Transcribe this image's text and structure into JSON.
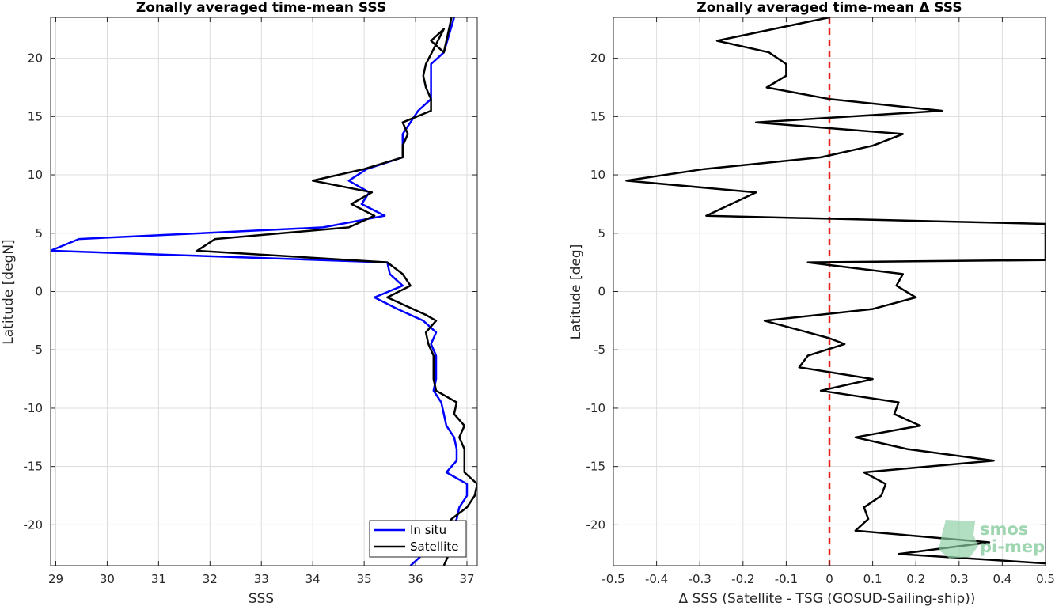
{
  "chart_data": [
    {
      "type": "line",
      "title": "Zonally averaged time-mean SSS",
      "xlabel": "SSS",
      "ylabel": "Latitude [degN]",
      "xlim": [
        28.9,
        37.2
      ],
      "ylim": [
        -23.5,
        23.5
      ],
      "xticks": [
        "29",
        "30",
        "31",
        "32",
        "33",
        "34",
        "35",
        "36",
        "37"
      ],
      "yticks": [
        "20",
        "15",
        "10",
        "5",
        "0",
        "-5",
        "-10",
        "-15",
        "-20"
      ],
      "grid": true,
      "legend": {
        "placement": "bottom-right",
        "entries": [
          "In situ",
          "Satellite"
        ]
      },
      "series": [
        {
          "name": "In situ",
          "color": "#0000ff",
          "points": [
            [
              36.75,
              23.5
            ],
            [
              36.55,
              20.5
            ],
            [
              36.3,
              19.5
            ],
            [
              36.3,
              18.5
            ],
            [
              36.3,
              17.5
            ],
            [
              36.3,
              16.5
            ],
            [
              36.05,
              15.5
            ],
            [
              35.9,
              14.5
            ],
            [
              35.75,
              13.5
            ],
            [
              35.75,
              12.5
            ],
            [
              35.75,
              11.5
            ],
            [
              35.05,
              10.5
            ],
            [
              34.7,
              9.5
            ],
            [
              35.1,
              8.5
            ],
            [
              34.95,
              7.5
            ],
            [
              35.4,
              6.5
            ],
            [
              34.2,
              5.5
            ],
            [
              29.45,
              4.5
            ],
            [
              28.9,
              3.5
            ],
            [
              35.45,
              2.5
            ],
            [
              35.5,
              1.5
            ],
            [
              35.75,
              0.5
            ],
            [
              35.2,
              -0.5
            ],
            [
              35.65,
              -1.5
            ],
            [
              36.15,
              -2.5
            ],
            [
              36.4,
              -3.5
            ],
            [
              36.3,
              -4.5
            ],
            [
              36.4,
              -5.5
            ],
            [
              36.4,
              -6.5
            ],
            [
              36.4,
              -7.5
            ],
            [
              36.35,
              -8.5
            ],
            [
              36.5,
              -9.5
            ],
            [
              36.55,
              -10.5
            ],
            [
              36.6,
              -11.5
            ],
            [
              36.75,
              -12.5
            ],
            [
              36.8,
              -13.5
            ],
            [
              36.8,
              -14.5
            ],
            [
              36.6,
              -15.5
            ],
            [
              37.0,
              -16.5
            ],
            [
              37.0,
              -17.5
            ],
            [
              36.85,
              -18.5
            ],
            [
              36.8,
              -19.5
            ],
            [
              36.7,
              -20.5
            ],
            [
              36.5,
              -21.5
            ],
            [
              36.15,
              -22.5
            ],
            [
              35.9,
              -23.5
            ]
          ]
        },
        {
          "name": "Satellite",
          "color": "#000000",
          "points": [
            [
              36.7,
              23.5
            ],
            [
              36.55,
              20.5
            ],
            [
              36.3,
              21.5
            ],
            [
              36.55,
              22.5
            ],
            [
              36.2,
              19.5
            ],
            [
              36.15,
              18.5
            ],
            [
              36.2,
              17.5
            ],
            [
              36.3,
              16.5
            ],
            [
              36.3,
              15.5
            ],
            [
              35.75,
              14.5
            ],
            [
              35.85,
              13.5
            ],
            [
              35.75,
              12.5
            ],
            [
              35.75,
              11.5
            ],
            [
              35.0,
              10.5
            ],
            [
              34.0,
              9.5
            ],
            [
              35.15,
              8.5
            ],
            [
              34.75,
              7.5
            ],
            [
              35.2,
              6.5
            ],
            [
              34.7,
              5.5
            ],
            [
              32.1,
              4.5
            ],
            [
              31.75,
              3.5
            ],
            [
              35.45,
              2.5
            ],
            [
              35.75,
              1.5
            ],
            [
              35.9,
              0.5
            ],
            [
              35.45,
              -0.5
            ],
            [
              36.2,
              -2.0
            ],
            [
              36.4,
              -2.5
            ],
            [
              36.2,
              -3.5
            ],
            [
              36.25,
              -4.5
            ],
            [
              36.35,
              -5.5
            ],
            [
              36.35,
              -6.5
            ],
            [
              36.35,
              -7.5
            ],
            [
              36.4,
              -8.5
            ],
            [
              36.8,
              -9.5
            ],
            [
              36.75,
              -10.5
            ],
            [
              36.95,
              -11.5
            ],
            [
              36.85,
              -12.5
            ],
            [
              36.95,
              -13.5
            ],
            [
              36.95,
              -14.5
            ],
            [
              36.95,
              -15.5
            ],
            [
              37.2,
              -16.5
            ],
            [
              37.15,
              -17.5
            ],
            [
              37.0,
              -18.5
            ],
            [
              36.7,
              -19.5
            ],
            [
              36.65,
              -20.0
            ],
            [
              36.75,
              -21.0
            ],
            [
              36.65,
              -22.5
            ],
            [
              36.55,
              -23.5
            ]
          ]
        }
      ]
    },
    {
      "type": "line",
      "title": "Zonally averaged time-mean Δ SSS",
      "xlabel": "Δ SSS (Satellite - TSG (GOSUD-Sailing-ship))",
      "ylabel": "Latitude [deg]",
      "xlim": [
        -0.5,
        0.5
      ],
      "ylim": [
        -23.5,
        23.5
      ],
      "xticks": [
        "-0.5",
        "-0.4",
        "-0.3",
        "-0.2",
        "-0.1",
        "0",
        "0.1",
        "0.2",
        "0.3",
        "0.4",
        "0.5"
      ],
      "yticks": [
        "20",
        "15",
        "10",
        "5",
        "0",
        "-5",
        "-10",
        "-15",
        "-20"
      ],
      "grid": true,
      "reference_line": {
        "x": 0,
        "color": "#e8201c",
        "style": "dashed"
      },
      "series": [
        {
          "color": "#000000",
          "points": [
            [
              0.0,
              23.5
            ],
            [
              -0.26,
              21.5
            ],
            [
              -0.14,
              20.5
            ],
            [
              -0.1,
              19.5
            ],
            [
              -0.1,
              18.5
            ],
            [
              -0.145,
              17.5
            ],
            [
              0.0,
              16.5
            ],
            [
              0.26,
              15.5
            ],
            [
              -0.17,
              14.5
            ],
            [
              0.17,
              13.5
            ],
            [
              0.1,
              12.5
            ],
            [
              -0.02,
              11.5
            ],
            [
              -0.29,
              10.5
            ],
            [
              -0.47,
              9.5
            ],
            [
              -0.17,
              8.5
            ],
            [
              -0.285,
              6.5
            ],
            [
              0.5,
              5.8
            ],
            [
              0.5,
              2.7
            ],
            [
              -0.05,
              2.5
            ],
            [
              0.17,
              1.5
            ],
            [
              0.155,
              0.5
            ],
            [
              0.2,
              -0.5
            ],
            [
              0.1,
              -1.5
            ],
            [
              -0.15,
              -2.5
            ],
            [
              0.0,
              -4.0
            ],
            [
              0.035,
              -4.5
            ],
            [
              -0.05,
              -5.5
            ],
            [
              -0.07,
              -6.5
            ],
            [
              0.1,
              -7.5
            ],
            [
              -0.02,
              -8.5
            ],
            [
              0.16,
              -9.5
            ],
            [
              0.15,
              -10.5
            ],
            [
              0.21,
              -11.5
            ],
            [
              0.06,
              -12.5
            ],
            [
              0.18,
              -13.5
            ],
            [
              0.38,
              -14.5
            ],
            [
              0.08,
              -15.5
            ],
            [
              0.13,
              -16.5
            ],
            [
              0.12,
              -17.5
            ],
            [
              0.08,
              -18.5
            ],
            [
              0.09,
              -19.5
            ],
            [
              0.06,
              -20.5
            ],
            [
              0.37,
              -21.5
            ],
            [
              0.16,
              -22.5
            ],
            [
              0.5,
              -23.3
            ]
          ]
        }
      ]
    }
  ],
  "logo": {
    "line1": "smos",
    "line2": "pi-mep",
    "color": "#8fd0a4"
  }
}
